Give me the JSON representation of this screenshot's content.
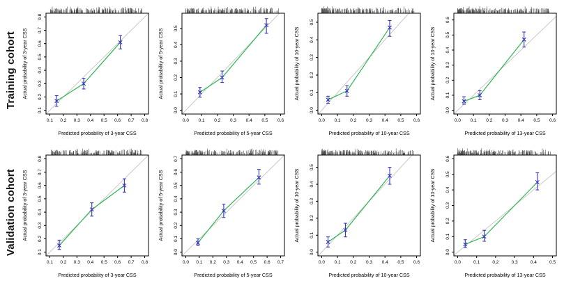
{
  "rows": [
    {
      "label": "Training cohort"
    },
    {
      "label": "Validation cohort"
    }
  ],
  "colors": {
    "ideal_line": "#c9c9c9",
    "calibration_line": "#2fb553",
    "error_bar": "#3737b8",
    "rug": "#3c3c3c",
    "axis": "#000000"
  },
  "chart_data": [
    {
      "type": "scatter",
      "id": "training-3yr",
      "row": "Training cohort",
      "xlabel": "Predicted probability of 3-year CSS",
      "ylabel": "Actual probability of 3-year CSS",
      "xlim": [
        0.1,
        0.8
      ],
      "ylim": [
        0.1,
        0.8
      ],
      "xticks": [
        0.1,
        0.2,
        0.3,
        0.4,
        0.5,
        0.6,
        0.7,
        0.8
      ],
      "yticks": [
        0.1,
        0.2,
        0.3,
        0.4,
        0.5,
        0.6,
        0.7,
        0.8
      ],
      "points": [
        {
          "x": 0.15,
          "y": 0.17,
          "lo": 0.13,
          "hi": 0.21
        },
        {
          "x": 0.35,
          "y": 0.3,
          "lo": 0.26,
          "hi": 0.34
        },
        {
          "x": 0.62,
          "y": 0.61,
          "lo": 0.56,
          "hi": 0.66
        }
      ],
      "rug": {
        "seed": 11,
        "count": 170,
        "power": 1.15
      }
    },
    {
      "type": "scatter",
      "id": "training-5yr",
      "row": "Training cohort",
      "xlabel": "Predicted probability of 5-year CSS",
      "ylabel": "Actual probability of 5-year CSS",
      "xlim": [
        0.0,
        0.6
      ],
      "ylim": [
        0.0,
        0.57
      ],
      "xticks": [
        0.0,
        0.1,
        0.2,
        0.3,
        0.4,
        0.5,
        0.6
      ],
      "yticks": [
        0.0,
        0.1,
        0.2,
        0.3,
        0.4,
        0.5
      ],
      "points": [
        {
          "x": 0.09,
          "y": 0.11,
          "lo": 0.08,
          "hi": 0.14
        },
        {
          "x": 0.23,
          "y": 0.2,
          "lo": 0.17,
          "hi": 0.24
        },
        {
          "x": 0.51,
          "y": 0.52,
          "lo": 0.47,
          "hi": 0.56
        }
      ],
      "rug": {
        "seed": 22,
        "count": 175,
        "power": 1.3
      }
    },
    {
      "type": "scatter",
      "id": "training-10yr",
      "row": "Training cohort",
      "xlabel": "Predicted probability of 10-year CSS",
      "ylabel": "Actual probability of 10-year CSS",
      "xlim": [
        0.0,
        0.6
      ],
      "ylim": [
        0.0,
        0.53
      ],
      "xticks": [
        0.0,
        0.1,
        0.2,
        0.3,
        0.4,
        0.5,
        0.6
      ],
      "yticks": [
        0.0,
        0.1,
        0.2,
        0.3,
        0.4,
        0.5
      ],
      "points": [
        {
          "x": 0.04,
          "y": 0.06,
          "lo": 0.04,
          "hi": 0.08
        },
        {
          "x": 0.16,
          "y": 0.11,
          "lo": 0.08,
          "hi": 0.14
        },
        {
          "x": 0.43,
          "y": 0.47,
          "lo": 0.42,
          "hi": 0.51
        }
      ],
      "rug": {
        "seed": 33,
        "count": 195,
        "power": 1.6
      }
    },
    {
      "type": "scatter",
      "id": "training-13yr",
      "row": "Training cohort",
      "xlabel": "Predicted probability of 13-year CSS",
      "ylabel": "Actual probability of 13-year CSS",
      "xlim": [
        0.0,
        0.6
      ],
      "ylim": [
        0.0,
        0.62
      ],
      "xticks": [
        0.0,
        0.1,
        0.2,
        0.3,
        0.4,
        0.5,
        0.6
      ],
      "yticks": [
        0.0,
        0.1,
        0.2,
        0.3,
        0.4,
        0.5,
        0.6
      ],
      "points": [
        {
          "x": 0.04,
          "y": 0.06,
          "lo": 0.04,
          "hi": 0.09
        },
        {
          "x": 0.14,
          "y": 0.1,
          "lo": 0.07,
          "hi": 0.13
        },
        {
          "x": 0.42,
          "y": 0.47,
          "lo": 0.42,
          "hi": 0.52
        }
      ],
      "rug": {
        "seed": 44,
        "count": 195,
        "power": 1.6
      }
    },
    {
      "type": "scatter",
      "id": "validation-3yr",
      "row": "Validation cohort",
      "xlabel": "Predicted probability of 3-year CSS",
      "ylabel": "Actual probability of 3-year CSS",
      "xlim": [
        0.1,
        0.8
      ],
      "ylim": [
        0.1,
        0.8
      ],
      "xticks": [
        0.1,
        0.2,
        0.3,
        0.4,
        0.5,
        0.6,
        0.7,
        0.8
      ],
      "yticks": [
        0.1,
        0.2,
        0.3,
        0.4,
        0.5,
        0.6,
        0.7,
        0.8
      ],
      "points": [
        {
          "x": 0.17,
          "y": 0.15,
          "lo": 0.12,
          "hi": 0.19
        },
        {
          "x": 0.41,
          "y": 0.42,
          "lo": 0.37,
          "hi": 0.47
        },
        {
          "x": 0.65,
          "y": 0.6,
          "lo": 0.55,
          "hi": 0.65
        }
      ],
      "rug": {
        "seed": 55,
        "count": 165,
        "power": 1.15
      }
    },
    {
      "type": "scatter",
      "id": "validation-5yr",
      "row": "Validation cohort",
      "xlabel": "Predicted probability of 5-year CSS",
      "ylabel": "Actual probability of 5-year CSS",
      "xlim": [
        0.0,
        0.7
      ],
      "ylim": [
        0.0,
        0.7
      ],
      "xticks": [
        0.0,
        0.1,
        0.2,
        0.3,
        0.4,
        0.5,
        0.6,
        0.7
      ],
      "yticks": [
        0.0,
        0.1,
        0.2,
        0.3,
        0.4,
        0.5,
        0.6,
        0.7
      ],
      "points": [
        {
          "x": 0.09,
          "y": 0.07,
          "lo": 0.05,
          "hi": 0.1
        },
        {
          "x": 0.28,
          "y": 0.31,
          "lo": 0.26,
          "hi": 0.36
        },
        {
          "x": 0.54,
          "y": 0.56,
          "lo": 0.51,
          "hi": 0.62
        }
      ],
      "rug": {
        "seed": 66,
        "count": 175,
        "power": 1.3
      }
    },
    {
      "type": "scatter",
      "id": "validation-10yr",
      "row": "Validation cohort",
      "xlabel": "Predicted probability of 10-year CSS",
      "ylabel": "Actual probability of 10-year CSS",
      "xlim": [
        0.0,
        0.6
      ],
      "ylim": [
        0.0,
        0.55
      ],
      "xticks": [
        0.0,
        0.1,
        0.2,
        0.3,
        0.4,
        0.5,
        0.6
      ],
      "yticks": [
        0.0,
        0.1,
        0.2,
        0.3,
        0.4,
        0.5
      ],
      "points": [
        {
          "x": 0.04,
          "y": 0.06,
          "lo": 0.03,
          "hi": 0.09
        },
        {
          "x": 0.15,
          "y": 0.13,
          "lo": 0.09,
          "hi": 0.17
        },
        {
          "x": 0.43,
          "y": 0.45,
          "lo": 0.4,
          "hi": 0.5
        }
      ],
      "rug": {
        "seed": 77,
        "count": 200,
        "power": 1.6
      }
    },
    {
      "type": "scatter",
      "id": "validation-13yr",
      "row": "Validation cohort",
      "xlabel": "Predicted probability of 13-year CSS",
      "ylabel": "Actual probability of 13-year CSS",
      "xlim": [
        0.0,
        0.5
      ],
      "ylim": [
        0.0,
        0.6
      ],
      "xticks": [
        0.0,
        0.1,
        0.2,
        0.3,
        0.4,
        0.5
      ],
      "yticks": [
        0.0,
        0.1,
        0.2,
        0.3,
        0.4,
        0.5,
        0.6
      ],
      "points": [
        {
          "x": 0.04,
          "y": 0.05,
          "lo": 0.03,
          "hi": 0.08
        },
        {
          "x": 0.14,
          "y": 0.1,
          "lo": 0.07,
          "hi": 0.14
        },
        {
          "x": 0.42,
          "y": 0.45,
          "lo": 0.4,
          "hi": 0.51
        }
      ],
      "rug": {
        "seed": 88,
        "count": 200,
        "power": 1.6
      }
    }
  ]
}
